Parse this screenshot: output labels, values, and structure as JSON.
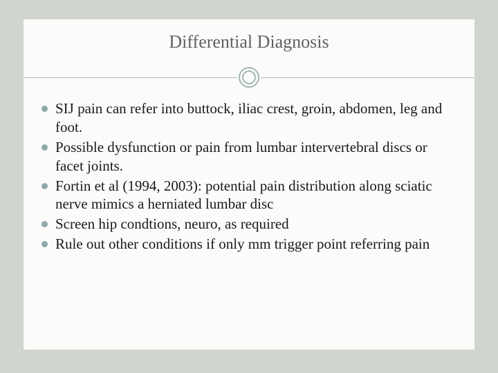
{
  "slide": {
    "title": "Differential Diagnosis",
    "title_color": "#5f5f5f",
    "title_fontsize": 26,
    "background_outer": "#d0d5ce",
    "background_inner": "#fbfbfa",
    "bullet_color": "#8fa8a9",
    "ring_color": "#a2b5b6",
    "divider_color": "#b9b9b9",
    "body_fontsize": 21,
    "body_color": "#1a1a1a",
    "font_family": "Georgia, serif",
    "bullets": [
      "SIJ pain can refer into buttock, iliac crest, groin, abdomen, leg and foot.",
      "Possible dysfunction or pain from lumbar intervertebral discs or facet joints.",
      "Fortin et al (1994, 2003): potential pain distribution along sciatic nerve mimics a herniated lumbar disc",
      "Screen hip condtions, neuro, as required",
      "Rule out other conditions if only mm trigger point referring pain"
    ]
  }
}
